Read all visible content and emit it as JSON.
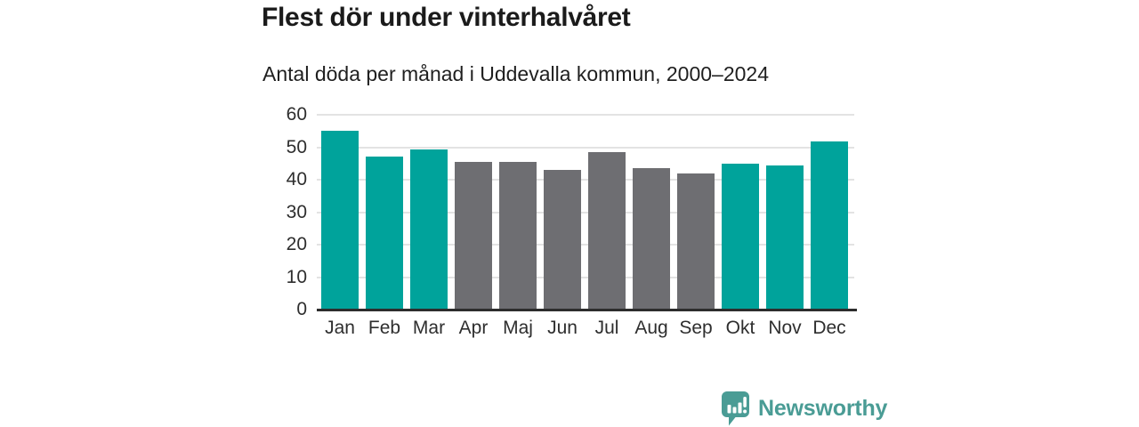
{
  "header": {
    "title": "Flest dör under vinterhalvåret",
    "subtitle": "Antal döda per månad i Uddevalla kommun, 2000–2024"
  },
  "chart_data": {
    "type": "bar",
    "title": "Flest dör under vinterhalvåret",
    "subtitle": "Antal döda per månad i Uddevalla kommun, 2000–2024",
    "categories": [
      "Jan",
      "Feb",
      "Mar",
      "Apr",
      "Maj",
      "Jun",
      "Jul",
      "Aug",
      "Sep",
      "Okt",
      "Nov",
      "Dec"
    ],
    "values": [
      55.0,
      47.0,
      49.2,
      45.6,
      45.4,
      43.0,
      48.5,
      43.7,
      41.8,
      45.0,
      44.5,
      51.9
    ],
    "bar_colors": [
      "#00a39b",
      "#00a39b",
      "#00a39b",
      "#6e6e72",
      "#6e6e72",
      "#6e6e72",
      "#6e6e72",
      "#6e6e72",
      "#6e6e72",
      "#00a39b",
      "#00a39b",
      "#00a39b"
    ],
    "highlight_color": "#00a39b",
    "muted_color": "#6e6e72",
    "xlabel": "",
    "ylabel": "",
    "ylim": [
      0,
      60
    ],
    "yticks": [
      0,
      10,
      20,
      30,
      40,
      50,
      60
    ],
    "grid": true,
    "gridline_color": "#e3e3e3",
    "axis_color": "#2d2d2d",
    "legend": false
  },
  "footer": {
    "brand": "Newsworthy",
    "brand_color": "#4a9c95",
    "logo_icon": "bar-chart-speech-bubble-icon"
  }
}
